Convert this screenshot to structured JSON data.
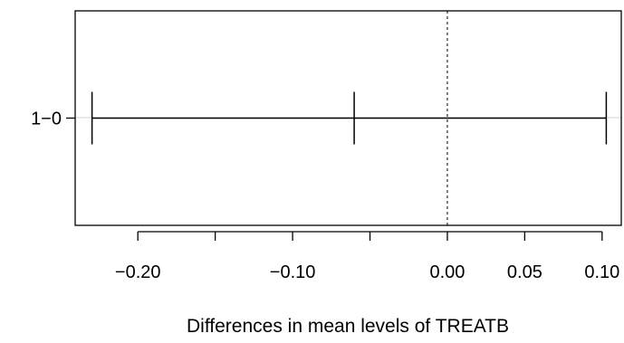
{
  "chart_data": {
    "type": "errorbar",
    "orientation": "horizontal",
    "xlabel": "Differences in mean levels of TREATB",
    "xlim": [
      -0.2405,
      0.1124
    ],
    "x_ticks": [
      -0.2,
      -0.15,
      -0.1,
      -0.05,
      0.0,
      0.05,
      0.1
    ],
    "x_tick_labels": [
      "−0.20",
      "",
      "−0.10",
      "",
      "0.00",
      "0.05",
      "0.10"
    ],
    "reference_line": 0.0,
    "comparisons": [
      {
        "label": "1−0",
        "lower": -0.2296,
        "estimate": -0.0602,
        "upper": 0.1027
      }
    ],
    "grid": false,
    "legend": "none"
  }
}
